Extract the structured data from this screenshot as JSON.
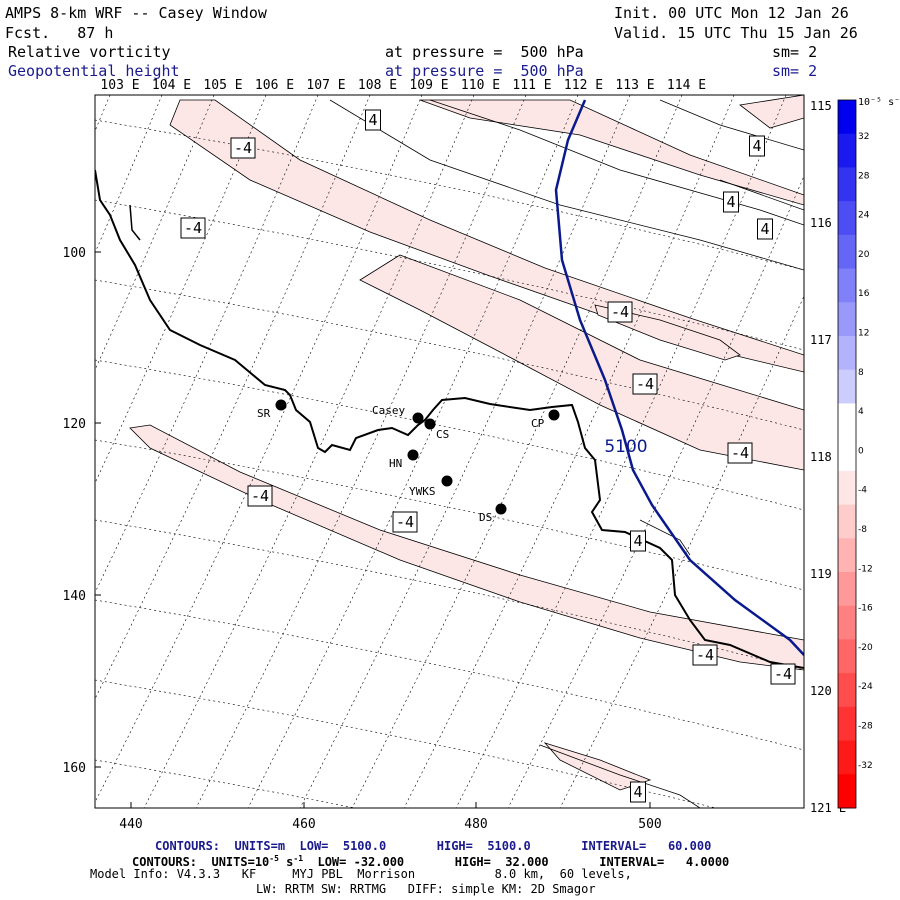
{
  "header": {
    "title": "AMPS 8-km WRF -- Casey Window",
    "init": "Init. 00 UTC Mon 12 Jan 26",
    "fcst": "Fcst.   87 h",
    "valid": "Valid. 15 UTC Thu 15 Jan 26",
    "field1": {
      "name": "Relative vorticity",
      "pressure_text": "at pressure =  500 hPa",
      "sm": "sm= 2"
    },
    "field2": {
      "name": "Geopotential height",
      "pressure_text": "at pressure =  500 hPa",
      "sm": "sm= 2"
    }
  },
  "lon_labels_top": [
    "103 E",
    "104 E",
    "105 E",
    "106 E",
    "107 E",
    "108 E",
    "109 E",
    "110 E",
    "111 E",
    "112 E",
    "113 E",
    "114 E"
  ],
  "lon_labels_right": [
    "115 E",
    "116 E",
    "117 E",
    "118 E",
    "119 E",
    "120 E",
    "121 E"
  ],
  "axes": {
    "x_ticks": [
      "440",
      "460",
      "480",
      "500"
    ],
    "y_ticks": [
      "100",
      "120",
      "140",
      "160"
    ]
  },
  "stations": [
    {
      "id": "SR",
      "label": "SR"
    },
    {
      "id": "casey",
      "label": "Casey"
    },
    {
      "id": "CS",
      "label": "CS"
    },
    {
      "id": "HN",
      "label": "HN"
    },
    {
      "id": "YWKS",
      "label": "YWKS"
    },
    {
      "id": "CP",
      "label": "CP"
    },
    {
      "id": "DS",
      "label": "DS"
    }
  ],
  "contour_labels": {
    "height": "5100",
    "vort_neg": "-4",
    "vort_pos": "4"
  },
  "colorbar": {
    "unit_label": "10⁻⁵ s⁻¹",
    "labels": [
      "32",
      "28",
      "24",
      "20",
      "16",
      "12",
      "8",
      "4",
      "0",
      "-4",
      "-8",
      "-12",
      "-16",
      "-20",
      "-24",
      "-28",
      "-32"
    ],
    "colors": [
      "#0000ee",
      "#1a1af0",
      "#3333f2",
      "#4d4df4",
      "#6666f6",
      "#8080f8",
      "#9999fa",
      "#b3b3fc",
      "#ccccfd",
      "#ffffff",
      "#ffffff",
      "#ffe6e6",
      "#ffcccc",
      "#ffb3b3",
      "#ff9999",
      "#ff8080",
      "#ff6666",
      "#ff4d4d",
      "#ff3333",
      "#ff1a1a",
      "#ff0000"
    ]
  },
  "footer": {
    "contours1": "CONTOURS:  UNITS=m  LOW=  5100.0       HIGH=  5100.0       INTERVAL=   60.000",
    "contours2_pre": "CONTOURS:  UNITS=10",
    "contours2_sup": "-5",
    "contours2_mid": " s",
    "contours2_sup2": "-1",
    "contours2_post": "  LOW= -32.000       HIGH=  32.000       INTERVAL=   4.0000",
    "model_info": "Model Info: V4.3.3   KF     MYJ PBL  Morrison           8.0 km,  60 levels,",
    "model_info2": "LW: RRTM SW: RRTMG   DIFF: simple KM: 2D Smagor"
  },
  "colors": {
    "height_contour": "#0a1a8c",
    "vort_fill": "#fde6e6",
    "coast": "#000000"
  }
}
